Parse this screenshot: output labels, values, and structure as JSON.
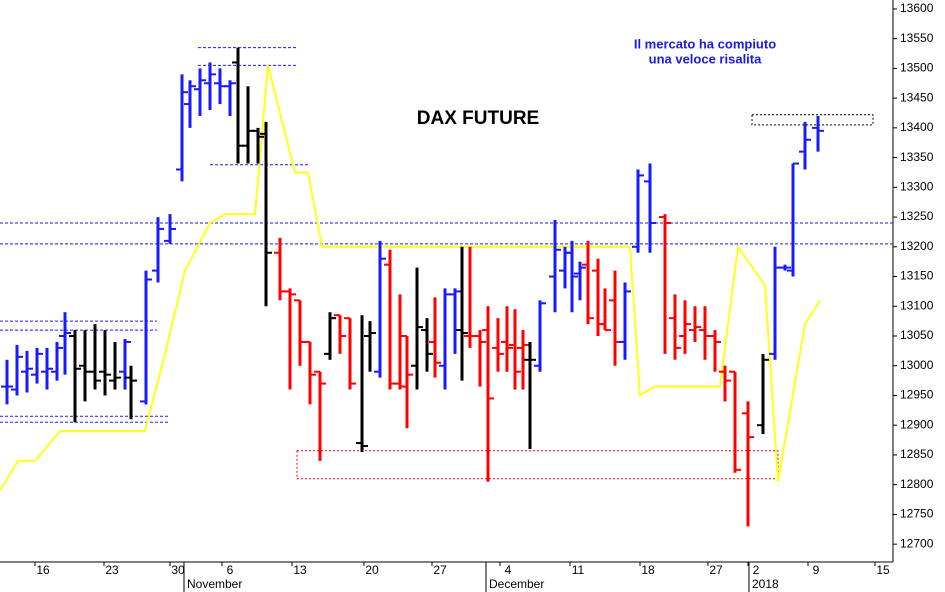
{
  "chart_data": {
    "type": "ohlc",
    "title": "DAX FUTURE",
    "annotation": [
      "Il mercato ha compiuto",
      "una veloce risalita"
    ],
    "xlim": [
      0,
      89.3
    ],
    "ylim": [
      12670,
      13615
    ],
    "yticks": [
      12700,
      12750,
      12800,
      12850,
      12900,
      12950,
      13000,
      13050,
      13100,
      13150,
      13200,
      13250,
      13300,
      13350,
      13400,
      13450,
      13500,
      13550,
      13600
    ],
    "xticks": [
      {
        "value": 4.3,
        "label": "16"
      },
      {
        "value": 11.2,
        "label": "23"
      },
      {
        "value": 17.8,
        "label": "30"
      },
      {
        "value": 23,
        "label": "6"
      },
      {
        "value": 30,
        "label": "13"
      },
      {
        "value": 37.2,
        "label": "20"
      },
      {
        "value": 44,
        "label": "27"
      },
      {
        "value": 50.8,
        "label": "4"
      },
      {
        "value": 57.8,
        "label": "11"
      },
      {
        "value": 64.8,
        "label": "18"
      },
      {
        "value": 71.6,
        "label": "27"
      },
      {
        "value": 75.6,
        "label": "2"
      },
      {
        "value": 81.6,
        "label": "9"
      },
      {
        "value": 88.3,
        "label": "15"
      }
    ],
    "month_labels": [
      {
        "value": 18.7,
        "label": "November"
      },
      {
        "value": 48.9,
        "label": "December"
      },
      {
        "value": 75.2,
        "label": "2018"
      }
    ],
    "bars": [
      {
        "x": 0.7,
        "open": 12965,
        "high": 13010,
        "low": 12935,
        "close": 12965,
        "color": "#1a1aff"
      },
      {
        "x": 1.7,
        "open": 12960,
        "high": 13035,
        "low": 12950,
        "close": 13015,
        "color": "#1a1aff"
      },
      {
        "x": 2.7,
        "open": 12990,
        "high": 13025,
        "low": 12955,
        "close": 12995,
        "color": "#1a1aff"
      },
      {
        "x": 3.7,
        "open": 12985,
        "high": 13030,
        "low": 12970,
        "close": 13020,
        "color": "#1a1aff"
      },
      {
        "x": 4.7,
        "open": 12990,
        "high": 13030,
        "low": 12960,
        "close": 12995,
        "color": "#1a1aff"
      },
      {
        "x": 5.7,
        "open": 12990,
        "high": 13040,
        "low": 12975,
        "close": 13030,
        "color": "#1a1aff"
      },
      {
        "x": 6.5,
        "open": 13050,
        "high": 13090,
        "low": 12985,
        "close": 13055,
        "color": "#1a1aff"
      },
      {
        "x": 7.5,
        "open": 13050,
        "high": 13060,
        "low": 12905,
        "close": 12995,
        "color": "#000000"
      },
      {
        "x": 8.5,
        "open": 13000,
        "high": 13060,
        "low": 12940,
        "close": 12990,
        "color": "#000000"
      },
      {
        "x": 9.5,
        "open": 12990,
        "high": 13070,
        "low": 12960,
        "close": 12975,
        "color": "#000000"
      },
      {
        "x": 10.5,
        "open": 12990,
        "high": 13060,
        "low": 12950,
        "close": 12985,
        "color": "#000000"
      },
      {
        "x": 11.5,
        "open": 12975,
        "high": 13040,
        "low": 12960,
        "close": 12980,
        "color": "#000000"
      },
      {
        "x": 12.5,
        "open": 12990,
        "high": 13045,
        "low": 12960,
        "close": 13040,
        "color": "#1a1aff"
      },
      {
        "x": 13.1,
        "open": 12980,
        "high": 13000,
        "low": 12910,
        "close": 12975,
        "color": "#000000"
      },
      {
        "x": 14.6,
        "open": 12940,
        "high": 13160,
        "low": 12935,
        "close": 13145,
        "color": "#1a1aff"
      },
      {
        "x": 15.8,
        "open": 13160,
        "high": 13250,
        "low": 13140,
        "close": 13230,
        "color": "#1a1aff"
      },
      {
        "x": 17,
        "open": 13210,
        "high": 13255,
        "low": 13205,
        "close": 13230,
        "color": "#1a1aff"
      },
      {
        "x": 18.2,
        "open": 13330,
        "high": 13490,
        "low": 13310,
        "close": 13460,
        "color": "#1a1aff"
      },
      {
        "x": 19,
        "open": 13440,
        "high": 13480,
        "low": 13400,
        "close": 13470,
        "color": "#1a1aff"
      },
      {
        "x": 20,
        "open": 13465,
        "high": 13500,
        "low": 13420,
        "close": 13480,
        "color": "#1a1aff"
      },
      {
        "x": 21,
        "open": 13475,
        "high": 13510,
        "low": 13430,
        "close": 13490,
        "color": "#1a1aff"
      },
      {
        "x": 22,
        "open": 13475,
        "high": 13500,
        "low": 13440,
        "close": 13470,
        "color": "#1a1aff"
      },
      {
        "x": 23,
        "open": 13470,
        "high": 13480,
        "low": 13420,
        "close": 13475,
        "color": "#1a1aff"
      },
      {
        "x": 23.8,
        "open": 13510,
        "high": 13535,
        "low": 13340,
        "close": 13370,
        "color": "#000000"
      },
      {
        "x": 24.8,
        "open": 13370,
        "high": 13470,
        "low": 13340,
        "close": 13395,
        "color": "#000000"
      },
      {
        "x": 25.8,
        "open": 13395,
        "high": 13400,
        "low": 13340,
        "close": 13385,
        "color": "#000000"
      },
      {
        "x": 26.6,
        "open": 13390,
        "high": 13410,
        "low": 13100,
        "close": 13190,
        "color": "#000000"
      },
      {
        "x": 28,
        "open": 13190,
        "high": 13215,
        "low": 13110,
        "close": 13125,
        "color": "#ff0000"
      },
      {
        "x": 29,
        "open": 13125,
        "high": 13130,
        "low": 12960,
        "close": 13120,
        "color": "#ff0000"
      },
      {
        "x": 30,
        "open": 13110,
        "high": 13110,
        "low": 13000,
        "close": 13040,
        "color": "#ff0000"
      },
      {
        "x": 31,
        "open": 13040,
        "high": 13040,
        "low": 12935,
        "close": 12985,
        "color": "#ff0000"
      },
      {
        "x": 32,
        "open": 12990,
        "high": 12990,
        "low": 12840,
        "close": 12970,
        "color": "#ff0000"
      },
      {
        "x": 33,
        "open": 13020,
        "high": 13090,
        "low": 13010,
        "close": 13080,
        "color": "#000000"
      },
      {
        "x": 34,
        "open": 13085,
        "high": 13085,
        "low": 13020,
        "close": 13050,
        "color": "#ff0000"
      },
      {
        "x": 35,
        "open": 13080,
        "high": 13080,
        "low": 12960,
        "close": 12970,
        "color": "#ff0000"
      },
      {
        "x": 36.2,
        "open": 12870,
        "high": 13085,
        "low": 12855,
        "close": 12865,
        "color": "#000000"
      },
      {
        "x": 37,
        "open": 13050,
        "high": 13075,
        "low": 12990,
        "close": 13055,
        "color": "#000000"
      },
      {
        "x": 38,
        "open": 12990,
        "high": 13210,
        "low": 12980,
        "close": 13180,
        "color": "#1a1aff"
      },
      {
        "x": 39,
        "open": 13170,
        "high": 13195,
        "low": 12960,
        "close": 12970,
        "color": "#ff0000"
      },
      {
        "x": 40,
        "open": 12970,
        "high": 13120,
        "low": 12960,
        "close": 12965,
        "color": "#ff0000"
      },
      {
        "x": 40.7,
        "open": 13050,
        "high": 13050,
        "low": 12895,
        "close": 12985,
        "color": "#ff0000"
      },
      {
        "x": 41.7,
        "open": 13000,
        "high": 13165,
        "low": 12960,
        "close": 13065,
        "color": "#000000"
      },
      {
        "x": 42.7,
        "open": 13060,
        "high": 13080,
        "low": 12990,
        "close": 13020,
        "color": "#000000"
      },
      {
        "x": 43.5,
        "open": 13040,
        "high": 13115,
        "low": 12980,
        "close": 13005,
        "color": "#ff0000"
      },
      {
        "x": 44.5,
        "open": 13000,
        "high": 13130,
        "low": 12960,
        "close": 13120,
        "color": "#1a1aff"
      },
      {
        "x": 45.5,
        "open": 13120,
        "high": 13130,
        "low": 13020,
        "close": 13125,
        "color": "#1a1aff"
      },
      {
        "x": 46.2,
        "open": 13060,
        "high": 13200,
        "low": 12975,
        "close": 13055,
        "color": "#000000"
      },
      {
        "x": 47,
        "open": 13050,
        "high": 13200,
        "low": 13030,
        "close": 13050,
        "color": "#ff0000"
      },
      {
        "x": 48,
        "open": 13050,
        "high": 13060,
        "low": 12965,
        "close": 13040,
        "color": "#ff0000"
      },
      {
        "x": 48.8,
        "open": 13060,
        "high": 13100,
        "low": 12805,
        "close": 12945,
        "color": "#ff0000"
      },
      {
        "x": 49.8,
        "open": 13030,
        "high": 13080,
        "low": 12990,
        "close": 13020,
        "color": "#ff0000"
      },
      {
        "x": 50.7,
        "open": 13040,
        "high": 13100,
        "low": 12990,
        "close": 13030,
        "color": "#ff0000"
      },
      {
        "x": 51.5,
        "open": 13035,
        "high": 13095,
        "low": 12960,
        "close": 12990,
        "color": "#ff0000"
      },
      {
        "x": 52.3,
        "open": 13030,
        "high": 13060,
        "low": 12960,
        "close": 13035,
        "color": "#ff0000"
      },
      {
        "x": 53,
        "open": 13010,
        "high": 13040,
        "low": 12860,
        "close": 13010,
        "color": "#000000"
      },
      {
        "x": 54,
        "open": 13000,
        "high": 13110,
        "low": 12990,
        "close": 13105,
        "color": "#1a1aff"
      },
      {
        "x": 55.5,
        "open": 13150,
        "high": 13245,
        "low": 13090,
        "close": 13195,
        "color": "#1a1aff"
      },
      {
        "x": 56.5,
        "open": 13160,
        "high": 13200,
        "low": 13130,
        "close": 13190,
        "color": "#1a1aff"
      },
      {
        "x": 57.2,
        "open": 13190,
        "high": 13210,
        "low": 13090,
        "close": 13150,
        "color": "#1a1aff"
      },
      {
        "x": 58,
        "open": 13155,
        "high": 13175,
        "low": 13110,
        "close": 13165,
        "color": "#1a1aff"
      },
      {
        "x": 58.8,
        "open": 13170,
        "high": 13210,
        "low": 13070,
        "close": 13080,
        "color": "#ff0000"
      },
      {
        "x": 59.8,
        "open": 13160,
        "high": 13180,
        "low": 13050,
        "close": 13070,
        "color": "#ff0000"
      },
      {
        "x": 60.5,
        "open": 13070,
        "high": 13130,
        "low": 13060,
        "close": 13060,
        "color": "#ff0000"
      },
      {
        "x": 61.5,
        "open": 13110,
        "high": 13160,
        "low": 13000,
        "close": 13040,
        "color": "#ff0000"
      },
      {
        "x": 62.5,
        "open": 13040,
        "high": 13140,
        "low": 13010,
        "close": 13125,
        "color": "#1a1aff"
      },
      {
        "x": 63.8,
        "open": 13200,
        "high": 13330,
        "low": 13190,
        "close": 13320,
        "color": "#1a1aff"
      },
      {
        "x": 65,
        "open": 13310,
        "high": 13340,
        "low": 13190,
        "close": 13240,
        "color": "#1a1aff"
      },
      {
        "x": 66.5,
        "open": 13250,
        "high": 13255,
        "low": 13020,
        "close": 13240,
        "color": "#ff0000"
      },
      {
        "x": 67.5,
        "open": 13080,
        "high": 13120,
        "low": 13010,
        "close": 13030,
        "color": "#ff0000"
      },
      {
        "x": 68.5,
        "open": 13050,
        "high": 13110,
        "low": 13020,
        "close": 13070,
        "color": "#ff0000"
      },
      {
        "x": 69.5,
        "open": 13060,
        "high": 13100,
        "low": 13040,
        "close": 13065,
        "color": "#ff0000"
      },
      {
        "x": 70.5,
        "open": 13060,
        "high": 13100,
        "low": 13010,
        "close": 13050,
        "color": "#ff0000"
      },
      {
        "x": 71.5,
        "open": 13050,
        "high": 13060,
        "low": 12990,
        "close": 13040,
        "color": "#ff0000"
      },
      {
        "x": 72.5,
        "open": 12990,
        "high": 13000,
        "low": 12940,
        "close": 12975,
        "color": "#ff0000"
      },
      {
        "x": 73.5,
        "open": 12990,
        "high": 12990,
        "low": 12820,
        "close": 12825,
        "color": "#ff0000"
      },
      {
        "x": 74.8,
        "open": 12920,
        "high": 12940,
        "low": 12730,
        "close": 12880,
        "color": "#ff0000"
      },
      {
        "x": 76.3,
        "open": 12900,
        "high": 13020,
        "low": 12885,
        "close": 13010,
        "color": "#000000"
      },
      {
        "x": 77.5,
        "open": 13020,
        "high": 13200,
        "low": 13010,
        "close": 13165,
        "color": "#1a1aff"
      },
      {
        "x": 78.5,
        "open": 13165,
        "high": 13170,
        "low": 13160,
        "close": 13165,
        "color": "#1a1aff"
      },
      {
        "x": 79.3,
        "open": 13160,
        "high": 13340,
        "low": 13150,
        "close": 13340,
        "color": "#1a1aff"
      },
      {
        "x": 80.5,
        "open": 13360,
        "high": 13410,
        "low": 13330,
        "close": 13380,
        "color": "#1a1aff"
      },
      {
        "x": 81.8,
        "open": 13400,
        "high": 13420,
        "low": 13360,
        "close": 13395,
        "color": "#1a1aff"
      }
    ],
    "line": {
      "color": "#ffff1a",
      "x": [
        0,
        1.8,
        3.5,
        6,
        14.5,
        16.5,
        18.5,
        21,
        22.5,
        25.5,
        26.8,
        29.5,
        30.8,
        32.2,
        63,
        64,
        65.5,
        72,
        73.8,
        76.5,
        77.8,
        80.5,
        82
      ],
      "values": [
        12790,
        12840,
        12840,
        12890,
        12890,
        13020,
        13160,
        13240,
        13255,
        13255,
        13505,
        13325,
        13325,
        13200,
        13200,
        12950,
        12965,
        12965,
        13200,
        13135,
        12805,
        13070,
        13110
      ]
    },
    "levels": [
      {
        "value": 13240,
        "x": [
          0,
          89.3
        ],
        "color": "#1a1aff"
      },
      {
        "value": 13205,
        "x": [
          0,
          89.3
        ],
        "color": "#1a1aff"
      },
      {
        "value": 13075,
        "x": [
          0,
          15.7
        ],
        "color": "#1a1aff"
      },
      {
        "value": 13060,
        "x": [
          0,
          15.7
        ],
        "color": "#1a1aff"
      },
      {
        "value": 12915,
        "x": [
          0,
          17
        ],
        "color": "#1a1aff"
      },
      {
        "value": 12905,
        "x": [
          0,
          17
        ],
        "color": "#1a1aff"
      },
      {
        "value": 13535,
        "x": [
          19.8,
          29.6
        ],
        "color": "#1a1aff"
      },
      {
        "value": 13505,
        "x": [
          19.8,
          29.6
        ],
        "color": "#1a1aff"
      },
      {
        "value": 13338,
        "x": [
          21,
          31
        ],
        "color": "#1a1aff"
      }
    ],
    "boxes": [
      {
        "y": [
          13405,
          13422
        ],
        "x": [
          75.2,
          87.3
        ],
        "color": "#000000"
      },
      {
        "y": [
          12810,
          12857
        ],
        "x": [
          29.7,
          77.8
        ],
        "color": "#ff0000"
      }
    ]
  }
}
